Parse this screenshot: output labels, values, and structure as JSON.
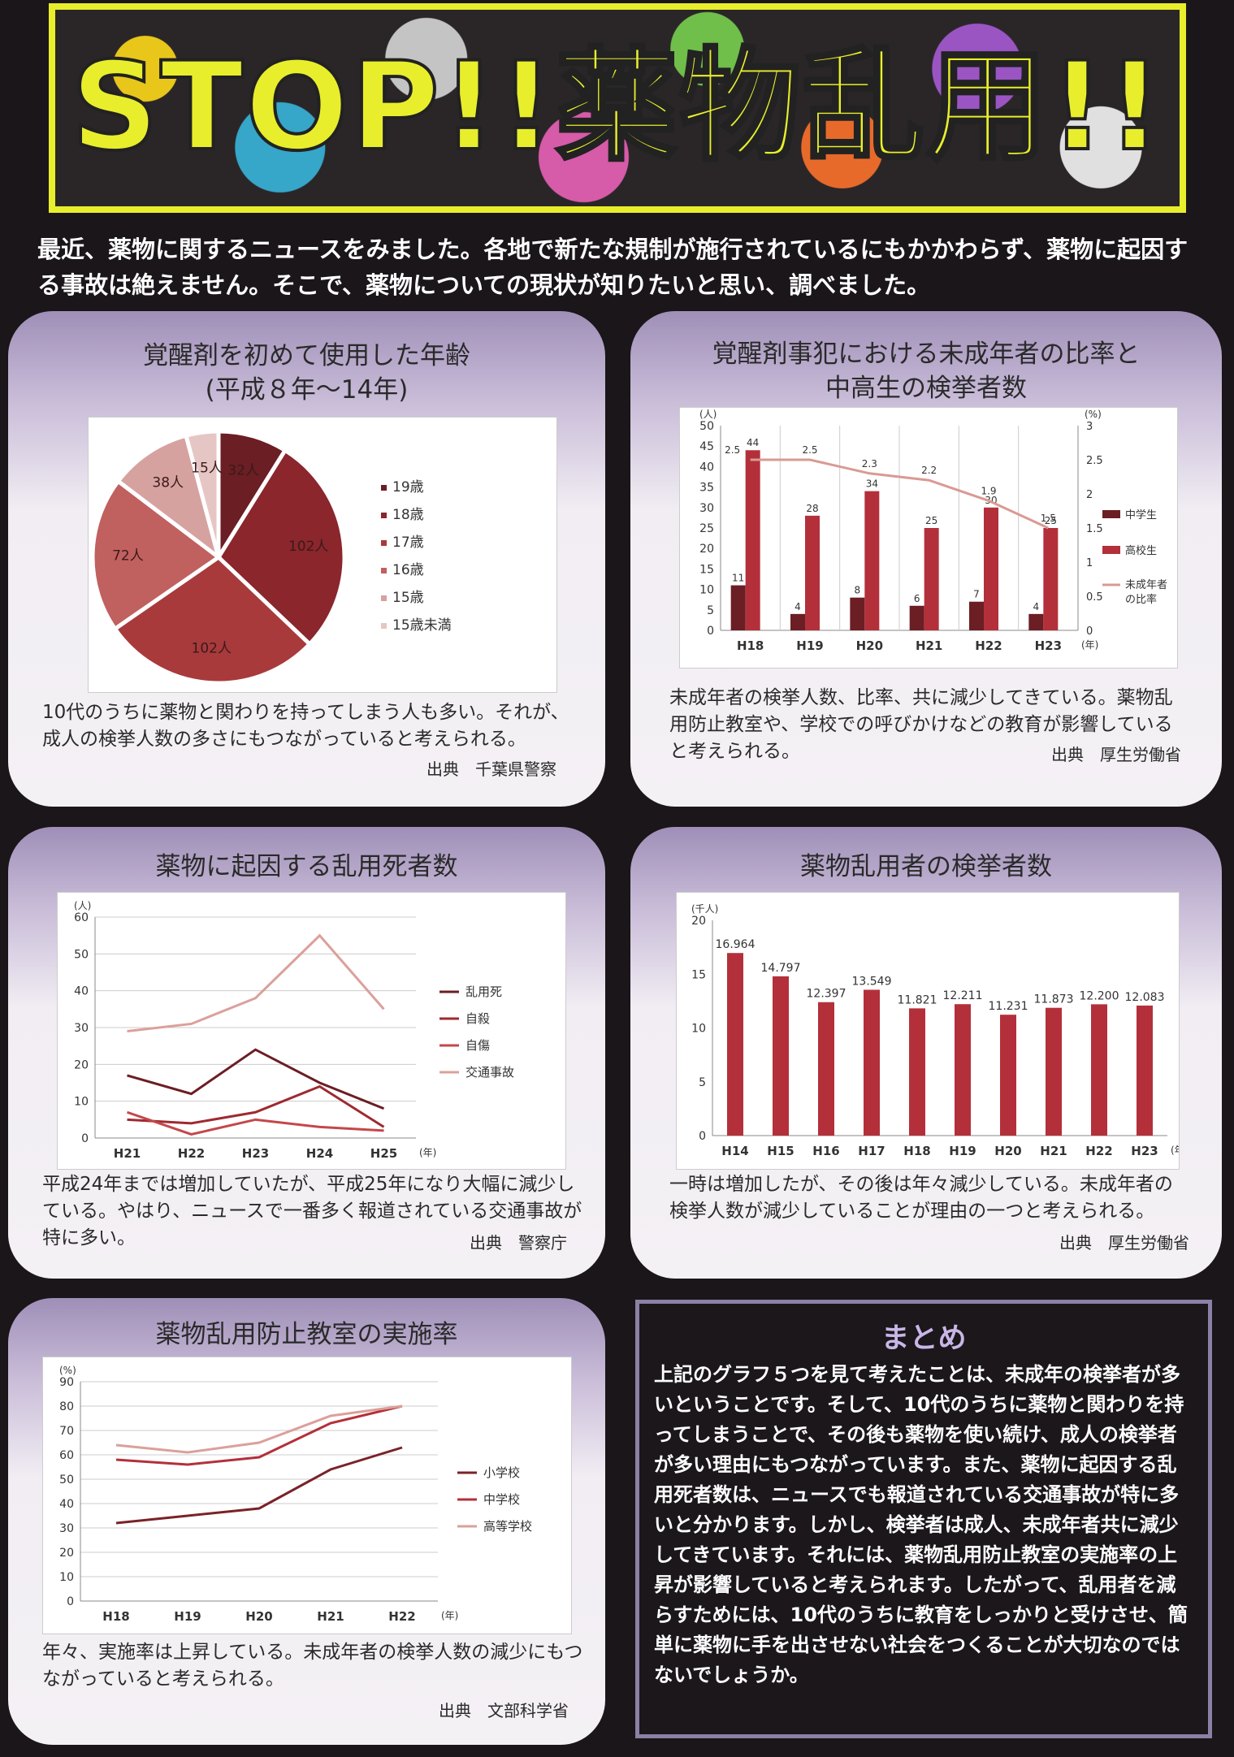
{
  "banner": {
    "title": "STOP!!薬物乱用!!"
  },
  "intro": {
    "text": "最近、薬物に関するニュースをみました。各地で新たな規制が施行されているにもかかわらず、薬物に起因する事故は絶えません。そこで、薬物についての現状が知りたいと思い、調べました。"
  },
  "cards": {
    "pie": {
      "title1": "覚醒剤を初めて使用した年齢",
      "title2": "(平成８年～14年)",
      "caption": "10代のうちに薬物と関わりを持ってしまう人も多い。それが、成人の検挙人数の多さにもつながっていると考えられる。",
      "source": "出典　千葉県警察"
    },
    "minor": {
      "title1": "覚醒剤事犯における未成年者の比率と",
      "title2": "中高生の検挙者数",
      "caption": "未成年者の検挙人数、比率、共に減少してきている。薬物乱用防止教室や、学校での呼びかけなどの教育が影響していると考えられる。",
      "source": "出典　厚生労働省"
    },
    "death": {
      "title1": "薬物に起因する乱用死者数",
      "caption": "平成24年までは増加していたが、平成25年になり大幅に減少している。やはり、ニュースで一番多く報道されている交通事故が特に多い。",
      "source": "出典　警察庁"
    },
    "arrest": {
      "title1": "薬物乱用者の検挙者数",
      "caption": "一時は増加したが、その後は年々減少している。未成年者の検挙人数が減少していることが理由の一つと考えられる。",
      "source": "出典　厚生労働省"
    },
    "class": {
      "title1": "薬物乱用防止教室の実施率",
      "caption": "年々、実施率は上昇している。未成年者の検挙人数の減少にもつながっていると考えられる。",
      "source": "出典　文部科学省"
    }
  },
  "summary": {
    "title": "まとめ",
    "text": "上記のグラフ５つを見て考えたことは、未成年の検挙者が多いということです。そして、10代のうちに薬物と関わりを持ってしまうことで、その後も薬物を使い続け、成人の検挙者が多い理由にもつながっています。また、薬物に起因する乱用死者数は、ニュースでも報道されている交通事故が特に多いと分かります。しかし、検挙者は成人、未成年者共に減少してきています。それには、薬物乱用防止教室の実施率の上昇が影響していると考えられます。したがって、乱用者を減らすためには、10代のうちに教育をしっかりと受けさせ、簡単に薬物に手を出させない社会をつくることが大切なのではないでしょうか。"
  },
  "colors": {
    "dark": "#6b1e24",
    "mid": "#b3303a",
    "light": "#d89a9a",
    "line": "#d99a93"
  },
  "chart_data": [
    {
      "type": "pie",
      "id": "pie",
      "slices": [
        {
          "name": "19歳",
          "value": 32,
          "label": "32人",
          "color": "#6b1e24"
        },
        {
          "name": "18歳",
          "value": 102,
          "label": "102人",
          "color": "#8a262c"
        },
        {
          "name": "17歳",
          "value": 102,
          "label": "102人",
          "color": "#a83a3c"
        },
        {
          "name": "16歳",
          "value": 72,
          "label": "72人",
          "color": "#c0605f"
        },
        {
          "name": "15歳",
          "value": 38,
          "label": "38人",
          "color": "#d6a2a0"
        },
        {
          "name": "15歳未満",
          "value": 15,
          "label": "15人",
          "color": "#e6c6c4"
        }
      ]
    },
    {
      "type": "bar",
      "id": "minor",
      "categories": [
        "H18",
        "H19",
        "H20",
        "H21",
        "H22",
        "H23"
      ],
      "xunit": "(年)",
      "yunit": "(人)",
      "y2unit": "(%)",
      "yticks": [
        "0",
        "5",
        "10",
        "15",
        "20",
        "25",
        "30",
        "35",
        "40",
        "45",
        "50"
      ],
      "y2ticks": [
        "0",
        "0.5",
        "1",
        "1.5",
        "2",
        "2.5",
        "3"
      ],
      "ylim": [
        0,
        50
      ],
      "y2lim": [
        0,
        3
      ],
      "series": [
        {
          "name": "中学生",
          "values": [
            11,
            4,
            8,
            6,
            7,
            4
          ],
          "color": "#6b1e24"
        },
        {
          "name": "高校生",
          "values": [
            44,
            28,
            34,
            25,
            30,
            25
          ],
          "color": "#b3303a"
        },
        {
          "name": "未成年者の比率",
          "axis": "right",
          "values": [
            2.5,
            2.5,
            2.3,
            2.2,
            1.9,
            1.5
          ],
          "color": "#d99a93"
        }
      ],
      "legend": [
        "中学生",
        "高校生",
        "未成年者",
        "の比率"
      ]
    },
    {
      "type": "line",
      "id": "death",
      "categories": [
        "H21",
        "H22",
        "H23",
        "H24",
        "H25"
      ],
      "xunit": "(年)",
      "yunit": "(人)",
      "yticks": [
        "0",
        "10",
        "20",
        "30",
        "40",
        "50",
        "60"
      ],
      "ylim": [
        0,
        60
      ],
      "series": [
        {
          "name": "乱用死",
          "values": [
            17,
            12,
            24,
            15,
            8
          ],
          "color": "#6b1e24"
        },
        {
          "name": "自殺",
          "values": [
            5,
            4,
            7,
            14,
            3
          ],
          "color": "#9e2a30"
        },
        {
          "name": "自傷",
          "values": [
            7,
            1,
            5,
            3,
            2
          ],
          "color": "#c4474a"
        },
        {
          "name": "交通事故",
          "values": [
            29,
            31,
            38,
            55,
            35
          ],
          "color": "#dba09a"
        }
      ]
    },
    {
      "type": "bar",
      "id": "arrest",
      "categories": [
        "H14",
        "H15",
        "H16",
        "H17",
        "H18",
        "H19",
        "H20",
        "H21",
        "H22",
        "H23"
      ],
      "xunit": "(年)",
      "yunit": "(千人)",
      "yticks": [
        "0",
        "5",
        "10",
        "15",
        "20"
      ],
      "ylim": [
        0,
        20
      ],
      "series": [
        {
          "name": "検挙者数",
          "values": [
            16.964,
            14.797,
            12.397,
            13.549,
            11.821,
            12.211,
            11.231,
            11.873,
            12.2,
            12.083
          ],
          "labels": [
            "16.964",
            "14.797",
            "12.397",
            "13.549",
            "11.821",
            "12.211",
            "11.231",
            "11.873",
            "12.200",
            "12.083"
          ],
          "color": "#b3303a"
        }
      ]
    },
    {
      "type": "line",
      "id": "class",
      "categories": [
        "H18",
        "H19",
        "H20",
        "H21",
        "H22"
      ],
      "xunit": "(年)",
      "yunit": "(%)",
      "yticks": [
        "0",
        "10",
        "20",
        "30",
        "40",
        "50",
        "60",
        "70",
        "80",
        "90"
      ],
      "ylim": [
        0,
        90
      ],
      "series": [
        {
          "name": "小学校",
          "values": [
            32,
            35,
            38,
            54,
            63
          ],
          "color": "#7a2228"
        },
        {
          "name": "中学校",
          "values": [
            58,
            56,
            59,
            73,
            80
          ],
          "color": "#b3303a"
        },
        {
          "name": "高等学校",
          "values": [
            64,
            61,
            65,
            76,
            80
          ],
          "color": "#dba09a"
        }
      ]
    }
  ]
}
